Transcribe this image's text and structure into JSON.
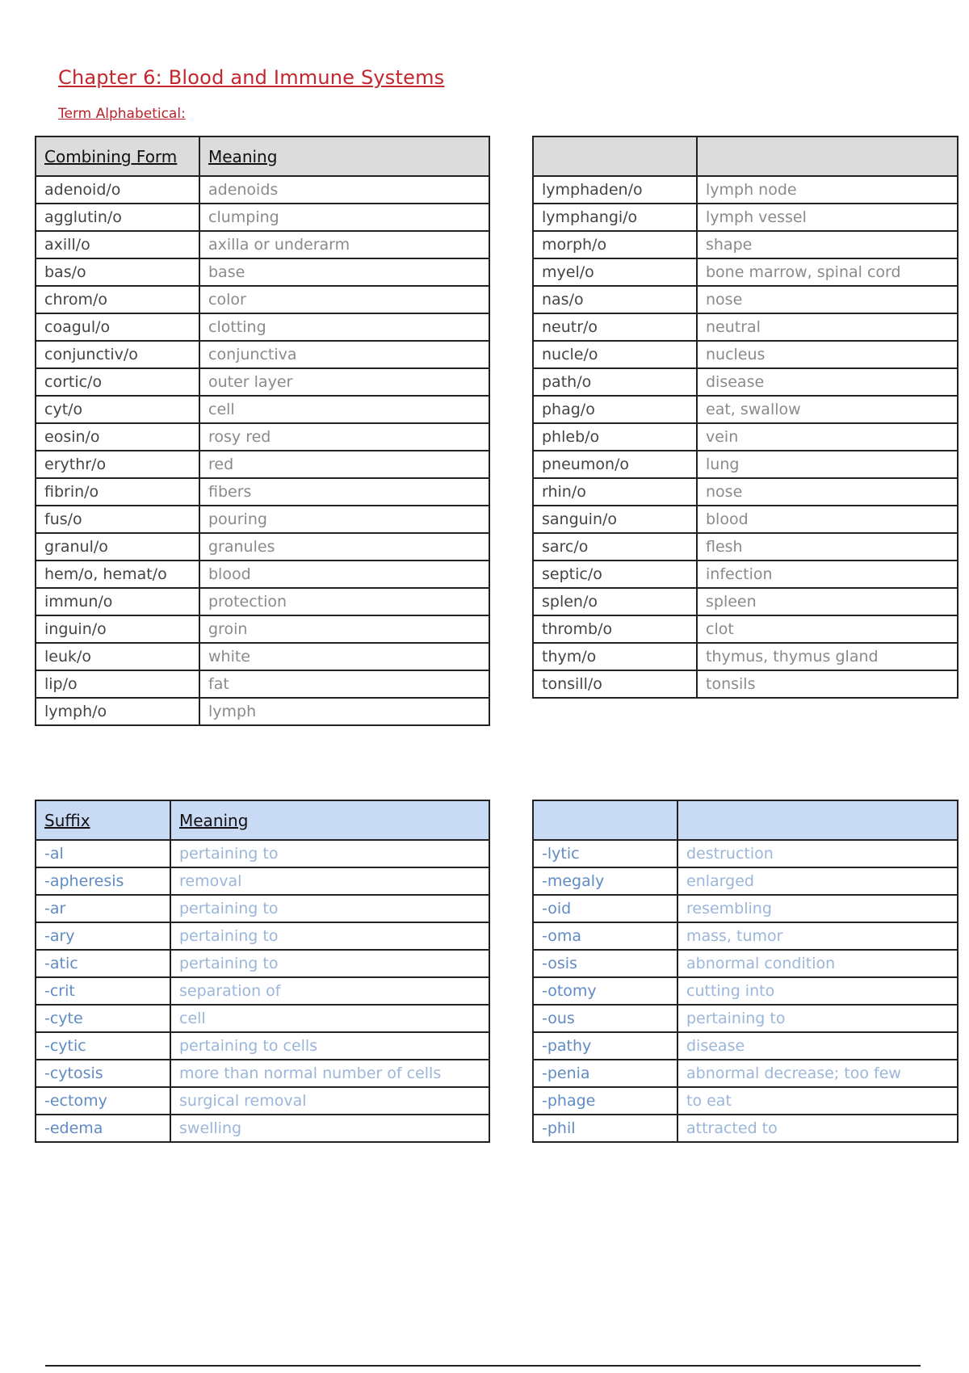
{
  "title": "Chapter 6: Blood and Immune Systems",
  "subtitle": "Term Alphabetical:",
  "colors": {
    "title": "#c4262e",
    "gray_header": "#dcdcdc",
    "blue_header": "#c9daf4",
    "suffix_term": "#5f8bc4",
    "suffix_meaning": "#9ab6da"
  },
  "combining_forms": {
    "headers": [
      "Combining Form",
      "Meaning"
    ],
    "left": [
      [
        "adenoid/o",
        "adenoids"
      ],
      [
        "agglutin/o",
        "clumping"
      ],
      [
        "axill/o",
        "axilla or underarm"
      ],
      [
        "bas/o",
        "base"
      ],
      [
        "chrom/o",
        "color"
      ],
      [
        "coagul/o",
        "clotting"
      ],
      [
        "conjunctiv/o",
        "conjunctiva"
      ],
      [
        "cortic/o",
        "outer layer"
      ],
      [
        "cyt/o",
        "cell"
      ],
      [
        "eosin/o",
        "rosy red"
      ],
      [
        "erythr/o",
        "red"
      ],
      [
        "fibrin/o",
        "fibers"
      ],
      [
        "fus/o",
        "pouring"
      ],
      [
        "granul/o",
        "granules"
      ],
      [
        "hem/o, hemat/o",
        "blood"
      ],
      [
        "immun/o",
        "protection"
      ],
      [
        "inguin/o",
        "groin"
      ],
      [
        "leuk/o",
        "white"
      ],
      [
        "lip/o",
        "fat"
      ],
      [
        "lymph/o",
        "lymph"
      ]
    ],
    "right": [
      [
        "lymphaden/o",
        "lymph node"
      ],
      [
        "lymphangi/o",
        "lymph vessel"
      ],
      [
        "morph/o",
        "shape"
      ],
      [
        "myel/o",
        "bone marrow, spinal cord"
      ],
      [
        "nas/o",
        "nose"
      ],
      [
        "neutr/o",
        "neutral"
      ],
      [
        "nucle/o",
        "nucleus"
      ],
      [
        "path/o",
        "disease"
      ],
      [
        "phag/o",
        "eat, swallow"
      ],
      [
        "phleb/o",
        "vein"
      ],
      [
        "pneumon/o",
        "lung"
      ],
      [
        "rhin/o",
        "nose"
      ],
      [
        "sanguin/o",
        "blood"
      ],
      [
        "sarc/o",
        "flesh"
      ],
      [
        "septic/o",
        "infection"
      ],
      [
        "splen/o",
        "spleen"
      ],
      [
        "thromb/o",
        "clot"
      ],
      [
        "thym/o",
        "thymus, thymus gland"
      ],
      [
        "tonsill/o",
        "tonsils"
      ]
    ]
  },
  "suffixes": {
    "headers": [
      "Suffix",
      "Meaning"
    ],
    "left": [
      [
        "-al",
        "pertaining to"
      ],
      [
        "-apheresis",
        "removal"
      ],
      [
        "-ar",
        "pertaining to"
      ],
      [
        "-ary",
        "pertaining to"
      ],
      [
        "-atic",
        "pertaining to"
      ],
      [
        "-crit",
        "separation of"
      ],
      [
        "-cyte",
        "cell"
      ],
      [
        "-cytic",
        "pertaining to cells"
      ],
      [
        "-cytosis",
        "more than normal number of cells"
      ],
      [
        "-ectomy",
        "surgical removal"
      ],
      [
        "-edema",
        "swelling"
      ]
    ],
    "right": [
      [
        "-lytic",
        "destruction"
      ],
      [
        "-megaly",
        "enlarged"
      ],
      [
        "-oid",
        "resembling"
      ],
      [
        "-oma",
        "mass, tumor"
      ],
      [
        "-osis",
        "abnormal condition"
      ],
      [
        "-otomy",
        "cutting into"
      ],
      [
        "-ous",
        "pertaining to"
      ],
      [
        "-pathy",
        "disease"
      ],
      [
        "-penia",
        "abnormal decrease; too few"
      ],
      [
        "-phage",
        "to eat"
      ],
      [
        "-phil",
        "attracted to"
      ]
    ]
  }
}
